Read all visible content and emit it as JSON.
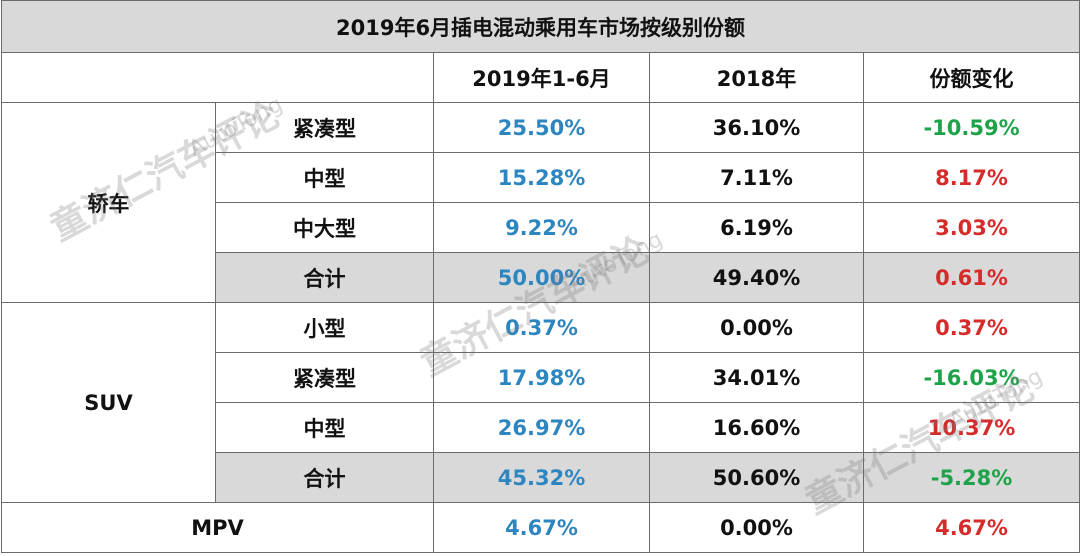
{
  "chart_data": {
    "type": "table",
    "title": "2019年6月插电混动乘用车市场按级别份额",
    "columns": [
      "",
      "",
      "2019年1-6月",
      "2018年",
      "份额变化"
    ],
    "rows": [
      {
        "group": "轿车",
        "segment": "紧凑型",
        "h1_2019": "25.50%",
        "y2018": "36.10%",
        "change": "-10.59%",
        "change_sign": "neg"
      },
      {
        "group": "轿车",
        "segment": "中型",
        "h1_2019": "15.28%",
        "y2018": "7.11%",
        "change": "8.17%",
        "change_sign": "pos"
      },
      {
        "group": "轿车",
        "segment": "中大型",
        "h1_2019": "9.22%",
        "y2018": "6.19%",
        "change": "3.03%",
        "change_sign": "pos"
      },
      {
        "group": "轿车",
        "segment": "合计",
        "h1_2019": "50.00%",
        "y2018": "49.40%",
        "change": "0.61%",
        "change_sign": "pos",
        "subtotal": true
      },
      {
        "group": "SUV",
        "segment": "小型",
        "h1_2019": "0.37%",
        "y2018": "0.00%",
        "change": "0.37%",
        "change_sign": "pos"
      },
      {
        "group": "SUV",
        "segment": "紧凑型",
        "h1_2019": "17.98%",
        "y2018": "34.01%",
        "change": "-16.03%",
        "change_sign": "neg"
      },
      {
        "group": "SUV",
        "segment": "中型",
        "h1_2019": "26.97%",
        "y2018": "16.60%",
        "change": "10.37%",
        "change_sign": "pos"
      },
      {
        "group": "SUV",
        "segment": "合计",
        "h1_2019": "45.32%",
        "y2018": "50.60%",
        "change": "-5.28%",
        "change_sign": "neg",
        "subtotal": true
      },
      {
        "group": "MPV",
        "segment": "",
        "h1_2019": "4.67%",
        "y2018": "0.00%",
        "change": "4.67%",
        "change_sign": "pos"
      }
    ],
    "colors": {
      "col_2019": "#2e86c1",
      "positive": "#d62b2b",
      "negative": "#1fa34a",
      "header_bg": "#d9d9d9"
    }
  },
  "watermark": {
    "main": "童济仁汽车评论",
    "sub": "AutoTong"
  }
}
